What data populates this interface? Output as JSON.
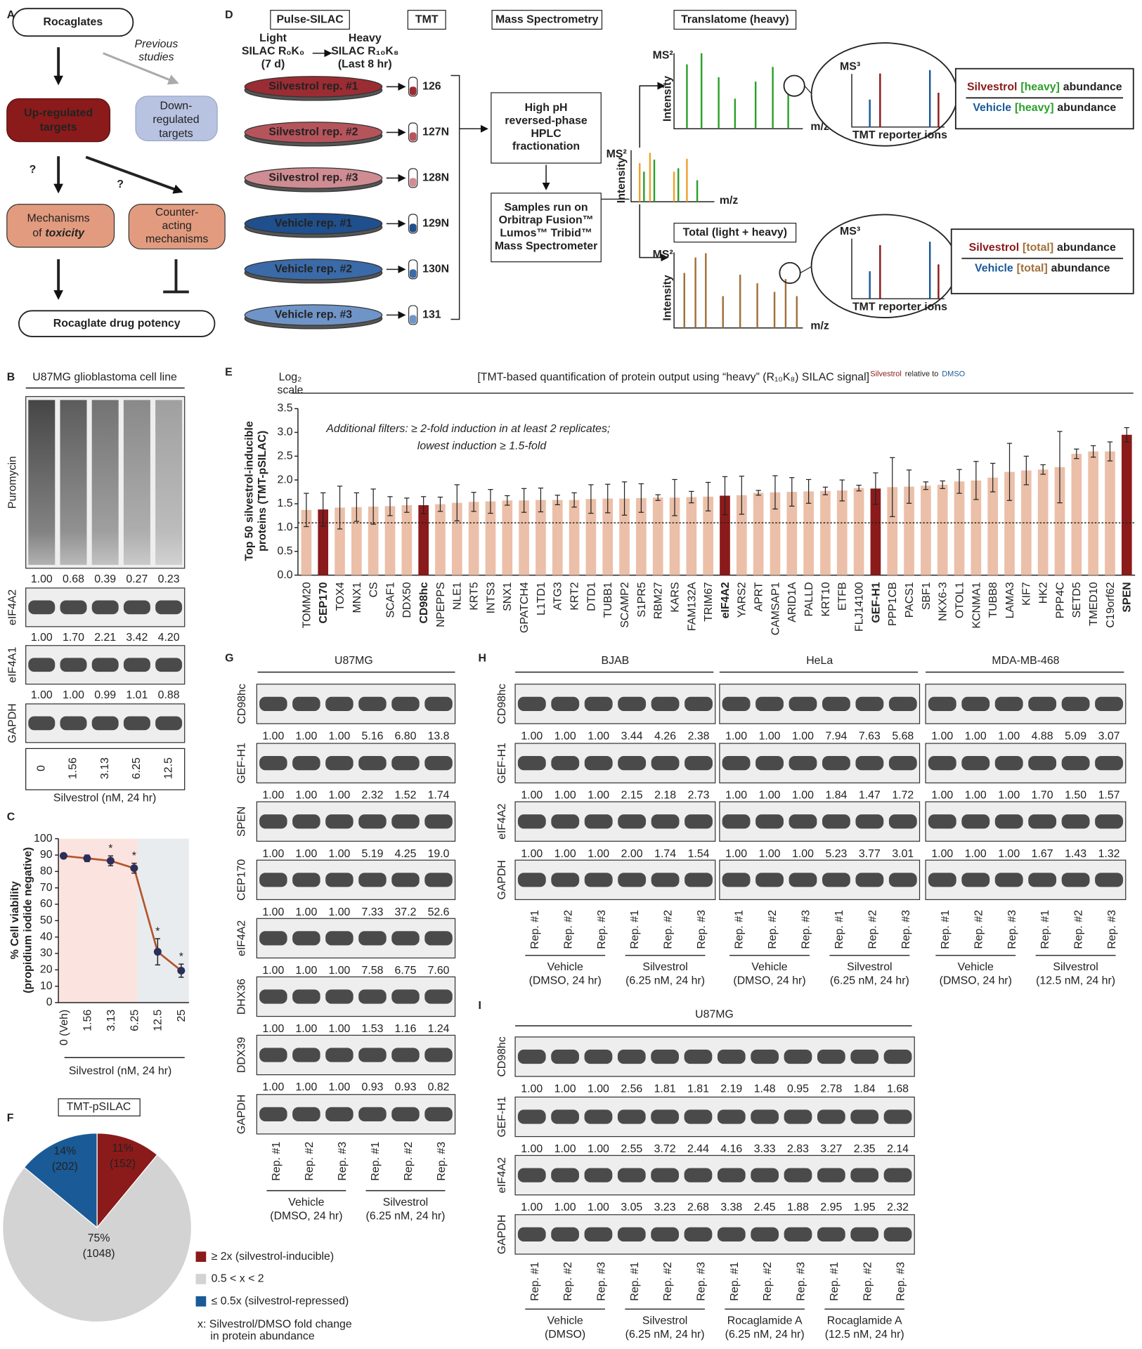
{
  "A": {
    "letter": "A",
    "top": "Rocaglates",
    "previous": [
      "Previous",
      "studies"
    ],
    "up": [
      "Up-regulated",
      "targets"
    ],
    "down": [
      "Down-",
      "regulated",
      "targets"
    ],
    "question": [
      "?",
      "?"
    ],
    "toxicity": [
      "Mechanisms",
      "of",
      "toxicity"
    ],
    "counter": [
      "Counter-",
      "acting",
      "mechanisms"
    ],
    "bottom": "Rocaglate drug potency"
  },
  "D": {
    "letter": "D",
    "headers": [
      "Pulse-SILAC",
      "TMT",
      "Mass Spectrometry"
    ],
    "translatome": "Translatome (heavy)",
    "total": "Total (light + heavy)",
    "light": [
      "Light",
      "SILAC R₀K₀",
      "(7 d)"
    ],
    "heavy": [
      "Heavy",
      "SILAC R₁₀K₈",
      "(Last 8 hr)"
    ],
    "samples": [
      {
        "name": "Silvestrol rep. #1",
        "tag": "126",
        "color": "#9b2c33"
      },
      {
        "name": "Silvestrol rep. #2",
        "tag": "127N",
        "color": "#b6545c"
      },
      {
        "name": "Silvestrol rep. #3",
        "tag": "128N",
        "color": "#cf8c92"
      },
      {
        "name": "Vehicle rep. #1",
        "tag": "129N",
        "color": "#1f4f8c"
      },
      {
        "name": "Vehicle rep. #2",
        "tag": "130N",
        "color": "#3a6aa8"
      },
      {
        "name": "Vehicle rep. #3",
        "tag": "131",
        "color": "#6f95c8"
      }
    ],
    "hplc": [
      "High pH",
      "reversed-phase",
      "HPLC",
      "fractionation"
    ],
    "instrument": [
      "Samples run on",
      "Orbitrap Fusion™",
      "Lumos™ Tribid™",
      "Mass Spectrometer"
    ],
    "ms2": "MS²",
    "ms3": "MS³",
    "intensity": "Intensity",
    "mz": "m/z",
    "reporter": "TMT reporter ions",
    "heavy_ratio": {
      "numerator": [
        "Silvestrol",
        "[heavy]",
        "abundance"
      ],
      "denominator": [
        "Vehicle",
        "[heavy]",
        "abundance"
      ]
    },
    "total_ratio": {
      "numerator": [
        "Silvestrol",
        "[total]",
        "abundance"
      ],
      "denominator": [
        "Vehicle",
        "[total]",
        "abundance"
      ]
    }
  },
  "B": {
    "letter": "B",
    "title": "U87MG glioblastoma cell line",
    "rows": [
      {
        "label": "Puromycin",
        "quant": [
          "1.00",
          "0.68",
          "0.39",
          "0.27",
          "0.23"
        ]
      },
      {
        "label": "eIF4A2",
        "quant": [
          "1.00",
          "1.70",
          "2.21",
          "3.42",
          "4.20"
        ]
      },
      {
        "label": "eIF4A1",
        "quant": [
          "1.00",
          "1.00",
          "0.99",
          "1.01",
          "0.88"
        ]
      },
      {
        "label": "GAPDH"
      }
    ],
    "lanes": [
      "0",
      "1.56",
      "3.13",
      "6.25",
      "12.5"
    ],
    "xlabel": "Silvestrol (nM, 24 hr)"
  },
  "C": {
    "letter": "C",
    "type": "line",
    "categories": [
      "0 (Veh)",
      "1.56",
      "3.13",
      "6.25",
      "12.5",
      "25"
    ],
    "values": [
      89.5,
      88,
      86.5,
      82,
      31,
      19.5
    ],
    "errors": [
      1.5,
      2,
      3,
      3,
      8,
      4
    ],
    "significance": [
      null,
      null,
      "*",
      "*",
      "*",
      "*"
    ],
    "color": "#b5542a",
    "ylim": [
      0,
      100
    ],
    "yticks": [
      0,
      10,
      20,
      30,
      40,
      50,
      60,
      70,
      80,
      90,
      100
    ],
    "ylabel": [
      "% Cell viability",
      "(propidium iodide negative)"
    ],
    "xlabel": "Silvestrol (nM, 24 hr)"
  },
  "E": {
    "letter": "E",
    "type": "bar",
    "scale_label": [
      "Log₂",
      "scale"
    ],
    "title": "[TMT-based quantification of protein output using “heavy” (R₁₀K₈) SILAC signal]",
    "title_sup": [
      "Silvestrol",
      "relative to",
      "DMSO"
    ],
    "ylabel": [
      "Top 50 silvestrol-inducible",
      "proteins (TMT-pSILAC)"
    ],
    "filters": [
      "Additional filters: ≥ 2-fold induction in at least 2 replicates;",
      "lowest induction ≥ 1.5-fold"
    ],
    "categories": [
      "TOMM20",
      "CEP170",
      "TOX4",
      "MNX1",
      "CS",
      "SCAF1",
      "DDX50",
      "CD98hc",
      "NPEPPS",
      "NLE1",
      "KRT5",
      "INTS3",
      "SNX1",
      "GPATCH4",
      "L1TD1",
      "ATG3",
      "KRT2",
      "DTD1",
      "TUBB1",
      "SCAMP2",
      "S1PR5",
      "RBM27",
      "KARS",
      "FAM132A",
      "TRIM67",
      "eIF4A2",
      "YARS2",
      "APRT",
      "CAMSAP1",
      "ARID1A",
      "PALLD",
      "KRT10",
      "ETFB",
      "FLJ14100",
      "GEF-H1",
      "PPP1CB",
      "PACS1",
      "SBF1",
      "NKX6-3",
      "OTOL1",
      "KCNMA1",
      "TUBB8",
      "LAMA3",
      "KIF7",
      "HK2",
      "PPP4C",
      "SETD5",
      "TMED10",
      "C19orf62",
      "SPEN"
    ],
    "values": [
      1.37,
      1.38,
      1.42,
      1.43,
      1.44,
      1.45,
      1.47,
      1.47,
      1.49,
      1.52,
      1.54,
      1.55,
      1.57,
      1.57,
      1.58,
      1.58,
      1.58,
      1.6,
      1.61,
      1.61,
      1.62,
      1.63,
      1.63,
      1.64,
      1.65,
      1.67,
      1.68,
      1.73,
      1.74,
      1.75,
      1.76,
      1.77,
      1.78,
      1.83,
      1.82,
      1.85,
      1.86,
      1.88,
      1.9,
      1.97,
      1.99,
      2.05,
      2.17,
      2.2,
      2.22,
      2.27,
      2.55,
      2.6,
      2.6,
      2.95
    ],
    "errors": [
      0.35,
      0.35,
      0.45,
      0.3,
      0.37,
      0.2,
      0.15,
      0.18,
      0.15,
      0.38,
      0.2,
      0.25,
      0.1,
      0.25,
      0.25,
      0.1,
      0.15,
      0.3,
      0.3,
      0.35,
      0.3,
      0.06,
      0.38,
      0.12,
      0.3,
      0.4,
      0.4,
      0.05,
      0.35,
      0.3,
      0.25,
      0.08,
      0.22,
      0.06,
      0.33,
      0.62,
      0.35,
      0.08,
      0.08,
      0.25,
      0.4,
      0.3,
      0.6,
      0.3,
      0.1,
      0.75,
      0.1,
      0.12,
      0.2,
      0.15
    ],
    "colors": [
      "#ebbfa8",
      "#8b1a1a",
      "#ebbfa8",
      "#ebbfa8",
      "#ebbfa8",
      "#ebbfa8",
      "#ebbfa8",
      "#8b1a1a",
      "#ebbfa8",
      "#ebbfa8",
      "#ebbfa8",
      "#ebbfa8",
      "#ebbfa8",
      "#ebbfa8",
      "#ebbfa8",
      "#ebbfa8",
      "#ebbfa8",
      "#ebbfa8",
      "#ebbfa8",
      "#ebbfa8",
      "#ebbfa8",
      "#ebbfa8",
      "#ebbfa8",
      "#ebbfa8",
      "#ebbfa8",
      "#8b1a1a",
      "#ebbfa8",
      "#ebbfa8",
      "#ebbfa8",
      "#ebbfa8",
      "#ebbfa8",
      "#ebbfa8",
      "#ebbfa8",
      "#ebbfa8",
      "#8b1a1a",
      "#ebbfa8",
      "#ebbfa8",
      "#ebbfa8",
      "#ebbfa8",
      "#ebbfa8",
      "#ebbfa8",
      "#ebbfa8",
      "#ebbfa8",
      "#ebbfa8",
      "#ebbfa8",
      "#ebbfa8",
      "#ebbfa8",
      "#ebbfa8",
      "#ebbfa8",
      "#8b1a1a"
    ],
    "ylim": [
      0,
      3.5
    ],
    "yticks": [
      {
        "value": 0,
        "label": "0.0"
      },
      0.5,
      {
        "value": 1,
        "label": "1.0"
      },
      1.5,
      {
        "value": 2,
        "label": "2.0"
      },
      2.5,
      {
        "value": 3,
        "label": "3.0"
      },
      3.5
    ],
    "reference_line": 1.1
  },
  "F": {
    "letter": "F",
    "type": "pie",
    "title": "TMT-pSILAC",
    "names": [
      "≥ 2x (silvestrol-inducible)",
      "0.5 < x < 2",
      "≤ 0.5x (silvestrol-repressed)"
    ],
    "values": [
      11,
      75,
      14
    ],
    "value_labels": [
      "11%",
      "75%",
      "14%"
    ],
    "counts": [
      "(152)",
      "(1048)",
      "(202)"
    ],
    "colors": [
      "#8b1a1a",
      "#d3d3d3",
      "#1a5a96"
    ],
    "note": [
      "x: Silvestrol/DMSO fold change",
      "in protein abundance"
    ]
  },
  "G": {
    "letter": "G",
    "title": "U87MG",
    "rows": [
      {
        "label": "CD98hc",
        "color": "#8b1a1a",
        "quant": [
          "1.00",
          "1.00",
          "1.00",
          "5.16",
          "6.80",
          "13.8"
        ]
      },
      {
        "label": "GEF-H1",
        "color": "#8b1a1a",
        "quant": [
          "1.00",
          "1.00",
          "1.00",
          "2.32",
          "1.52",
          "1.74"
        ]
      },
      {
        "label": "SPEN",
        "color": "#8b1a1a",
        "quant": [
          "1.00",
          "1.00",
          "1.00",
          "5.19",
          "4.25",
          "19.0"
        ]
      },
      {
        "label": "CEP170",
        "color": "#8b1a1a",
        "quant": [
          "1.00",
          "1.00",
          "1.00",
          "7.33",
          "37.2",
          "52.6"
        ]
      },
      {
        "label": "eIF4A2",
        "color": "#8b1a1a",
        "quant": [
          "1.00",
          "1.00",
          "1.00",
          "7.58",
          "6.75",
          "7.60"
        ]
      },
      {
        "label": "DHX36",
        "color": "#222222",
        "quant": [
          "1.00",
          "1.00",
          "1.00",
          "1.53",
          "1.16",
          "1.24"
        ]
      },
      {
        "label": "DDX39",
        "color": "#222222",
        "quant": [
          "1.00",
          "1.00",
          "1.00",
          "0.93",
          "0.93",
          "0.82"
        ]
      },
      {
        "label": "GAPDH",
        "color": "#222222"
      }
    ],
    "lanes": [
      "Rep. #1",
      "Rep. #2",
      "Rep. #3",
      "Rep. #1",
      "Rep. #2",
      "Rep. #3"
    ],
    "groups": [
      [
        "Vehicle",
        "(DMSO, 24 hr)"
      ],
      [
        "Silvestrol",
        "(6.25 nM, 24 hr)"
      ]
    ]
  },
  "H": {
    "letter": "H",
    "rows": [
      "CD98hc",
      "GEF-H1",
      "eIF4A2",
      "GAPDH"
    ],
    "lines": [
      {
        "title": "BJAB",
        "quant": [
          [
            "1.00",
            "1.00",
            "1.00",
            "3.44",
            "4.26",
            "2.38"
          ],
          [
            "1.00",
            "1.00",
            "1.00",
            "2.15",
            "2.18",
            "2.73"
          ],
          [
            "1.00",
            "1.00",
            "1.00",
            "2.00",
            "1.74",
            "1.54"
          ]
        ],
        "lanes": [
          "Rep. #1",
          "Rep. #2",
          "Rep. #3",
          "Rep. #1",
          "Rep. #2",
          "Rep. #3"
        ],
        "groups": [
          [
            "Vehicle",
            "(DMSO, 24 hr)"
          ],
          [
            "Silvestrol",
            "(6.25 nM, 24 hr)"
          ]
        ]
      },
      {
        "title": "HeLa",
        "quant": [
          [
            "1.00",
            "1.00",
            "1.00",
            "7.94",
            "7.63",
            "5.68"
          ],
          [
            "1.00",
            "1.00",
            "1.00",
            "1.84",
            "1.47",
            "1.72"
          ],
          [
            "1.00",
            "1.00",
            "1.00",
            "5.23",
            "3.77",
            "3.01"
          ]
        ],
        "lanes": [
          "Rep. #1",
          "Rep. #2",
          "Rep. #3",
          "Rep. #1",
          "Rep. #2",
          "Rep. #3"
        ],
        "groups": [
          [
            "Vehicle",
            "(DMSO, 24 hr)"
          ],
          [
            "Silvestrol",
            "(6.25 nM, 24 hr)"
          ]
        ]
      },
      {
        "title": "MDA-MB-468",
        "quant": [
          [
            "1.00",
            "1.00",
            "1.00",
            "4.88",
            "5.09",
            "3.07"
          ],
          [
            "1.00",
            "1.00",
            "1.00",
            "1.70",
            "1.50",
            "1.57"
          ],
          [
            "1.00",
            "1.00",
            "1.00",
            "1.67",
            "1.43",
            "1.32"
          ]
        ],
        "lanes": [
          "Rep. #1",
          "Rep. #2",
          "Rep. #3",
          "Rep. #1",
          "Rep. #2",
          "Rep. #3"
        ],
        "groups": [
          [
            "Vehicle",
            "(DMSO, 24 hr)"
          ],
          [
            "Silvestrol",
            "(12.5 nM, 24 hr)"
          ]
        ]
      }
    ]
  },
  "I": {
    "letter": "I",
    "title": "U87MG",
    "rows": [
      {
        "label": "CD98hc",
        "quant": [
          "1.00",
          "1.00",
          "1.00",
          "2.56",
          "1.81",
          "1.81",
          "2.19",
          "1.48",
          "0.95",
          "2.78",
          "1.84",
          "1.68"
        ]
      },
      {
        "label": "GEF-H1",
        "quant": [
          "1.00",
          "1.00",
          "1.00",
          "2.55",
          "3.72",
          "2.44",
          "4.16",
          "3.33",
          "2.83",
          "3.27",
          "2.35",
          "2.14"
        ]
      },
      {
        "label": "eIF4A2",
        "quant": [
          "1.00",
          "1.00",
          "1.00",
          "3.05",
          "3.23",
          "2.68",
          "3.38",
          "2.45",
          "1.88",
          "2.95",
          "1.95",
          "2.32"
        ]
      },
      {
        "label": "GAPDH"
      }
    ],
    "lanes": [
      "Rep. #1",
      "Rep. #2",
      "Rep. #3",
      "Rep. #1",
      "Rep. #2",
      "Rep. #3",
      "Rep. #1",
      "Rep. #2",
      "Rep. #3",
      "Rep. #1",
      "Rep. #2",
      "Rep. #3"
    ],
    "groups": [
      [
        "Vehicle",
        "(DMSO)"
      ],
      [
        "Silvestrol",
        "(6.25 nM, 24 hr)"
      ],
      [
        "Rocaglamide A",
        "(6.25 nM, 24 hr)"
      ],
      [
        "Rocaglamide A",
        "(12.5 nM, 24 hr)"
      ]
    ]
  }
}
